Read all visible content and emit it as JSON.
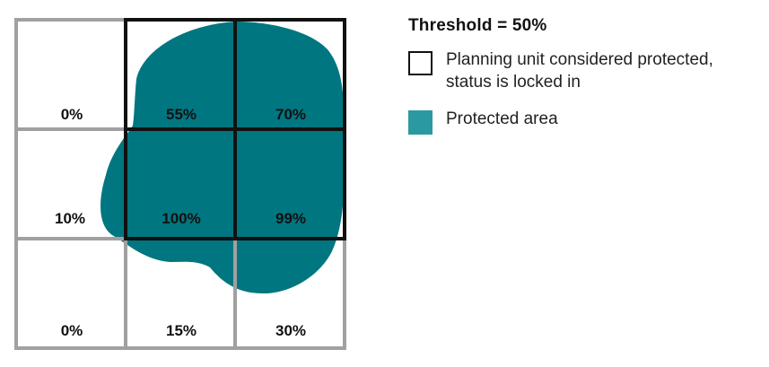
{
  "threshold_title": "Threshold = 50%",
  "colors": {
    "protected_area": "#007680",
    "legend_protected_swatch": "#2a9aa0",
    "unprotected_border": "#a0a0a0",
    "protected_border": "#111111",
    "text": "#111111"
  },
  "grid": {
    "rows": [
      [
        {
          "label": "0%",
          "coverage": 0,
          "protected": false
        },
        {
          "label": "55%",
          "coverage": 55,
          "protected": true
        },
        {
          "label": "70%",
          "coverage": 70,
          "protected": true
        }
      ],
      [
        {
          "label": "10%",
          "coverage": 10,
          "protected": false
        },
        {
          "label": "100%",
          "coverage": 100,
          "protected": true
        },
        {
          "label": "99%",
          "coverage": 99,
          "protected": true
        }
      ],
      [
        {
          "label": "0%",
          "coverage": 0,
          "protected": false
        },
        {
          "label": "15%",
          "coverage": 15,
          "protected": false
        },
        {
          "label": "30%",
          "coverage": 30,
          "protected": false
        }
      ]
    ]
  },
  "legend": {
    "locked_in_line1": "Planning unit considered protected,",
    "locked_in_line2": "status is locked in",
    "protected_area": "Protected area"
  }
}
